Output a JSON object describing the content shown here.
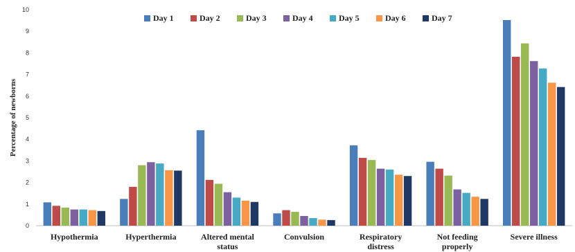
{
  "chart_data": {
    "type": "bar",
    "ylabel": "Percentage of newborns",
    "ylim": [
      0,
      10
    ],
    "yticks": [
      0,
      1,
      2,
      3,
      4,
      5,
      6,
      7,
      8,
      9,
      10
    ],
    "grid": false,
    "legend_position": "top-center",
    "categories": [
      [
        "Hypothermia"
      ],
      [
        "Hyperthermia"
      ],
      [
        "Altered mental",
        "status"
      ],
      [
        "Convulsion"
      ],
      [
        "Respiratory",
        "distress"
      ],
      [
        "Not feeding",
        "properly"
      ],
      [
        "Severe illness"
      ]
    ],
    "series": [
      {
        "name": "Day 1",
        "color": "#4a7ebb",
        "values": [
          1.08,
          1.24,
          4.42,
          0.57,
          3.72,
          2.96,
          9.52
        ]
      },
      {
        "name": "Day 2",
        "color": "#be4b48",
        "values": [
          0.92,
          1.8,
          2.12,
          0.72,
          3.14,
          2.64,
          7.82
        ]
      },
      {
        "name": "Day 3",
        "color": "#98b954",
        "values": [
          0.84,
          2.8,
          1.94,
          0.64,
          3.04,
          2.32,
          8.44
        ]
      },
      {
        "name": "Day 4",
        "color": "#7d60a0",
        "values": [
          0.75,
          2.94,
          1.55,
          0.45,
          2.64,
          1.68,
          7.62
        ]
      },
      {
        "name": "Day 5",
        "color": "#46aac5",
        "values": [
          0.75,
          2.88,
          1.3,
          0.35,
          2.6,
          1.52,
          7.28
        ]
      },
      {
        "name": "Day 6",
        "color": "#f79646",
        "values": [
          0.72,
          2.57,
          1.16,
          0.28,
          2.36,
          1.34,
          6.62
        ]
      },
      {
        "name": "Day 7",
        "color": "#1f3864",
        "values": [
          0.68,
          2.55,
          1.1,
          0.26,
          2.3,
          1.24,
          6.42
        ]
      }
    ]
  }
}
